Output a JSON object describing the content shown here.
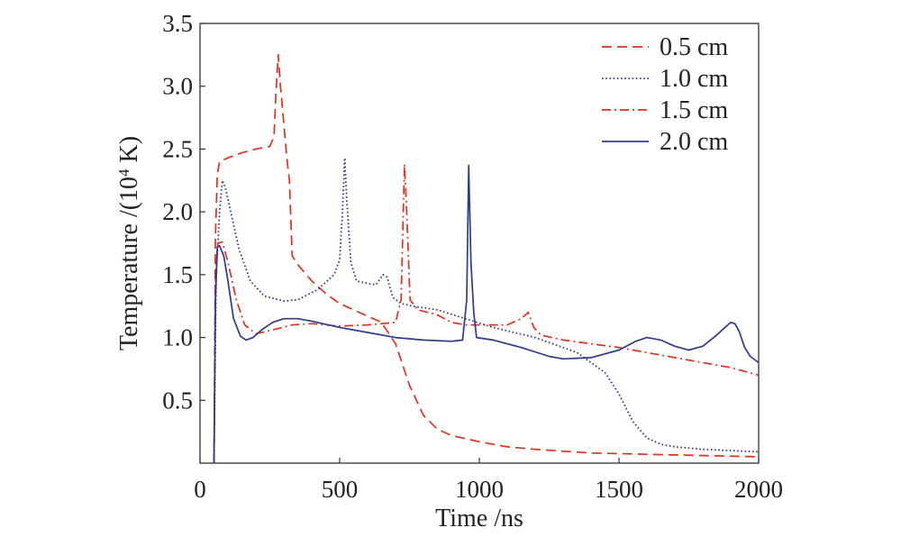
{
  "chart_data": {
    "type": "line",
    "xlabel": "Time /ns",
    "ylabel_main": "Temperature /(10",
    "ylabel_sup": "4",
    "ylabel_end": " K)",
    "xlim": [
      0,
      2000
    ],
    "ylim": [
      0,
      3.5
    ],
    "xticks": [
      0,
      500,
      1000,
      1500,
      2000
    ],
    "yticks": [
      0.5,
      1.0,
      1.5,
      2.0,
      2.5,
      3.0,
      3.5
    ],
    "ytick_labels": [
      "0.5",
      "1.0",
      "1.5",
      "2.0",
      "2.5",
      "3.0",
      "3.5"
    ],
    "legend_position": "top-right",
    "series": [
      {
        "name": "0.5 cm",
        "color": "#e0301e",
        "dash": "dashed",
        "points": [
          [
            50,
            0
          ],
          [
            55,
            1.8
          ],
          [
            62,
            2.3
          ],
          [
            70,
            2.4
          ],
          [
            100,
            2.43
          ],
          [
            150,
            2.47
          ],
          [
            200,
            2.5
          ],
          [
            250,
            2.52
          ],
          [
            265,
            2.6
          ],
          [
            272,
            2.95
          ],
          [
            280,
            3.25
          ],
          [
            288,
            3.0
          ],
          [
            300,
            2.7
          ],
          [
            310,
            2.45
          ],
          [
            320,
            2.25
          ],
          [
            330,
            1.65
          ],
          [
            350,
            1.58
          ],
          [
            400,
            1.45
          ],
          [
            450,
            1.35
          ],
          [
            500,
            1.27
          ],
          [
            550,
            1.22
          ],
          [
            600,
            1.17
          ],
          [
            650,
            1.12
          ],
          [
            700,
            0.95
          ],
          [
            750,
            0.62
          ],
          [
            800,
            0.38
          ],
          [
            850,
            0.27
          ],
          [
            900,
            0.22
          ],
          [
            1000,
            0.17
          ],
          [
            1100,
            0.13
          ],
          [
            1200,
            0.11
          ],
          [
            1400,
            0.08
          ],
          [
            1600,
            0.07
          ],
          [
            1800,
            0.06
          ],
          [
            2000,
            0.05
          ]
        ]
      },
      {
        "name": "1.0 cm",
        "color": "#2e3a8c",
        "dash": "dotted",
        "points": [
          [
            50,
            0
          ],
          [
            58,
            1.5
          ],
          [
            70,
            2.0
          ],
          [
            80,
            2.25
          ],
          [
            90,
            2.2
          ],
          [
            110,
            2.0
          ],
          [
            140,
            1.7
          ],
          [
            180,
            1.45
          ],
          [
            230,
            1.33
          ],
          [
            300,
            1.29
          ],
          [
            350,
            1.3
          ],
          [
            420,
            1.38
          ],
          [
            480,
            1.5
          ],
          [
            500,
            1.62
          ],
          [
            510,
            2.0
          ],
          [
            518,
            2.43
          ],
          [
            525,
            2.1
          ],
          [
            540,
            1.6
          ],
          [
            560,
            1.45
          ],
          [
            600,
            1.43
          ],
          [
            630,
            1.42
          ],
          [
            655,
            1.5
          ],
          [
            670,
            1.48
          ],
          [
            690,
            1.32
          ],
          [
            720,
            1.27
          ],
          [
            760,
            1.25
          ],
          [
            850,
            1.22
          ],
          [
            950,
            1.15
          ],
          [
            1050,
            1.08
          ],
          [
            1200,
            1.0
          ],
          [
            1350,
            0.88
          ],
          [
            1450,
            0.72
          ],
          [
            1500,
            0.55
          ],
          [
            1550,
            0.33
          ],
          [
            1600,
            0.2
          ],
          [
            1650,
            0.15
          ],
          [
            1700,
            0.13
          ],
          [
            1800,
            0.11
          ],
          [
            1900,
            0.1
          ],
          [
            2000,
            0.09
          ]
        ]
      },
      {
        "name": "1.5 cm",
        "color": "#e0301e",
        "dash": "dashdot",
        "points": [
          [
            50,
            0
          ],
          [
            56,
            1.5
          ],
          [
            64,
            1.75
          ],
          [
            80,
            1.76
          ],
          [
            100,
            1.6
          ],
          [
            130,
            1.3
          ],
          [
            160,
            1.1
          ],
          [
            200,
            1.03
          ],
          [
            260,
            1.06
          ],
          [
            330,
            1.1
          ],
          [
            400,
            1.11
          ],
          [
            500,
            1.09
          ],
          [
            600,
            1.1
          ],
          [
            700,
            1.12
          ],
          [
            720,
            1.3
          ],
          [
            732,
            2.38
          ],
          [
            740,
            2.0
          ],
          [
            752,
            1.3
          ],
          [
            780,
            1.22
          ],
          [
            850,
            1.18
          ],
          [
            900,
            1.12
          ],
          [
            950,
            1.1
          ],
          [
            1000,
            1.1
          ],
          [
            1100,
            1.1
          ],
          [
            1150,
            1.15
          ],
          [
            1175,
            1.2
          ],
          [
            1195,
            1.08
          ],
          [
            1220,
            1.02
          ],
          [
            1300,
            0.98
          ],
          [
            1500,
            0.92
          ],
          [
            1700,
            0.84
          ],
          [
            1900,
            0.76
          ],
          [
            2000,
            0.7
          ]
        ]
      },
      {
        "name": "2.0 cm",
        "color": "#2e3a8c",
        "dash": "solid",
        "points": [
          [
            50,
            0
          ],
          [
            55,
            1.3
          ],
          [
            62,
            1.72
          ],
          [
            70,
            1.73
          ],
          [
            85,
            1.65
          ],
          [
            100,
            1.45
          ],
          [
            120,
            1.15
          ],
          [
            145,
            1.01
          ],
          [
            165,
            0.98
          ],
          [
            190,
            1.0
          ],
          [
            220,
            1.06
          ],
          [
            260,
            1.12
          ],
          [
            300,
            1.15
          ],
          [
            350,
            1.15
          ],
          [
            400,
            1.13
          ],
          [
            500,
            1.08
          ],
          [
            600,
            1.04
          ],
          [
            700,
            1.0
          ],
          [
            800,
            0.98
          ],
          [
            900,
            0.97
          ],
          [
            940,
            0.98
          ],
          [
            955,
            1.3
          ],
          [
            962,
            2.37
          ],
          [
            970,
            1.6
          ],
          [
            980,
            1.2
          ],
          [
            990,
            1.0
          ],
          [
            1050,
            0.98
          ],
          [
            1150,
            0.92
          ],
          [
            1250,
            0.85
          ],
          [
            1300,
            0.83
          ],
          [
            1400,
            0.84
          ],
          [
            1500,
            0.9
          ],
          [
            1560,
            0.97
          ],
          [
            1600,
            1.0
          ],
          [
            1650,
            0.98
          ],
          [
            1700,
            0.93
          ],
          [
            1750,
            0.9
          ],
          [
            1800,
            0.93
          ],
          [
            1850,
            1.02
          ],
          [
            1900,
            1.12
          ],
          [
            1915,
            1.11
          ],
          [
            1930,
            1.05
          ],
          [
            1950,
            0.92
          ],
          [
            1970,
            0.85
          ],
          [
            2000,
            0.8
          ]
        ]
      }
    ]
  }
}
